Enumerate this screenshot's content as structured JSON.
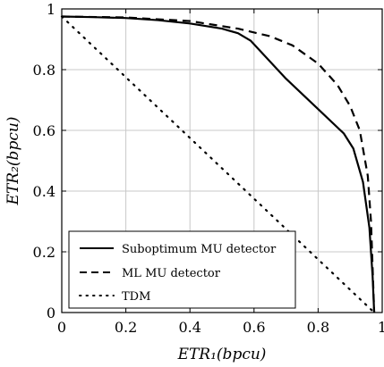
{
  "chart_data": {
    "type": "line",
    "xlabel": "ETR₁(bpcu)",
    "ylabel": "ETR₂(bpcu)",
    "xlim": [
      0,
      1
    ],
    "ylim": [
      0,
      1
    ],
    "xticks": [
      0,
      0.2,
      0.4,
      0.6,
      0.8,
      1
    ],
    "yticks": [
      0,
      0.2,
      0.4,
      0.6,
      0.8,
      1
    ],
    "xtick_labels": [
      "0",
      "0.2",
      "0.4",
      "0.6",
      "0.8",
      "1"
    ],
    "ytick_labels": [
      "0",
      "0.2",
      "0.4",
      "0.6",
      "0.8",
      "1"
    ],
    "grid": true,
    "legend_position": "bottom-left",
    "series": [
      {
        "name": "Suboptimum MU detector",
        "style": "solid",
        "color": "#000000",
        "x": [
          0,
          0.1,
          0.2,
          0.3,
          0.4,
          0.5,
          0.55,
          0.59,
          0.7,
          0.8,
          0.88,
          0.91,
          0.94,
          0.96,
          0.97,
          0.975
        ],
        "y": [
          0.975,
          0.973,
          0.97,
          0.963,
          0.952,
          0.935,
          0.92,
          0.895,
          0.77,
          0.67,
          0.59,
          0.54,
          0.43,
          0.28,
          0.12,
          0.0
        ]
      },
      {
        "name": "ML MU detector",
        "style": "dashed",
        "color": "#000000",
        "x": [
          0,
          0.2,
          0.4,
          0.55,
          0.65,
          0.72,
          0.8,
          0.86,
          0.9,
          0.93,
          0.955,
          0.965,
          0.975
        ],
        "y": [
          0.975,
          0.972,
          0.96,
          0.935,
          0.91,
          0.88,
          0.82,
          0.75,
          0.68,
          0.6,
          0.45,
          0.3,
          0.0
        ]
      },
      {
        "name": "TDM",
        "style": "dotted",
        "color": "#000000",
        "x": [
          0,
          0.975
        ],
        "y": [
          0.975,
          0.0
        ]
      }
    ]
  }
}
